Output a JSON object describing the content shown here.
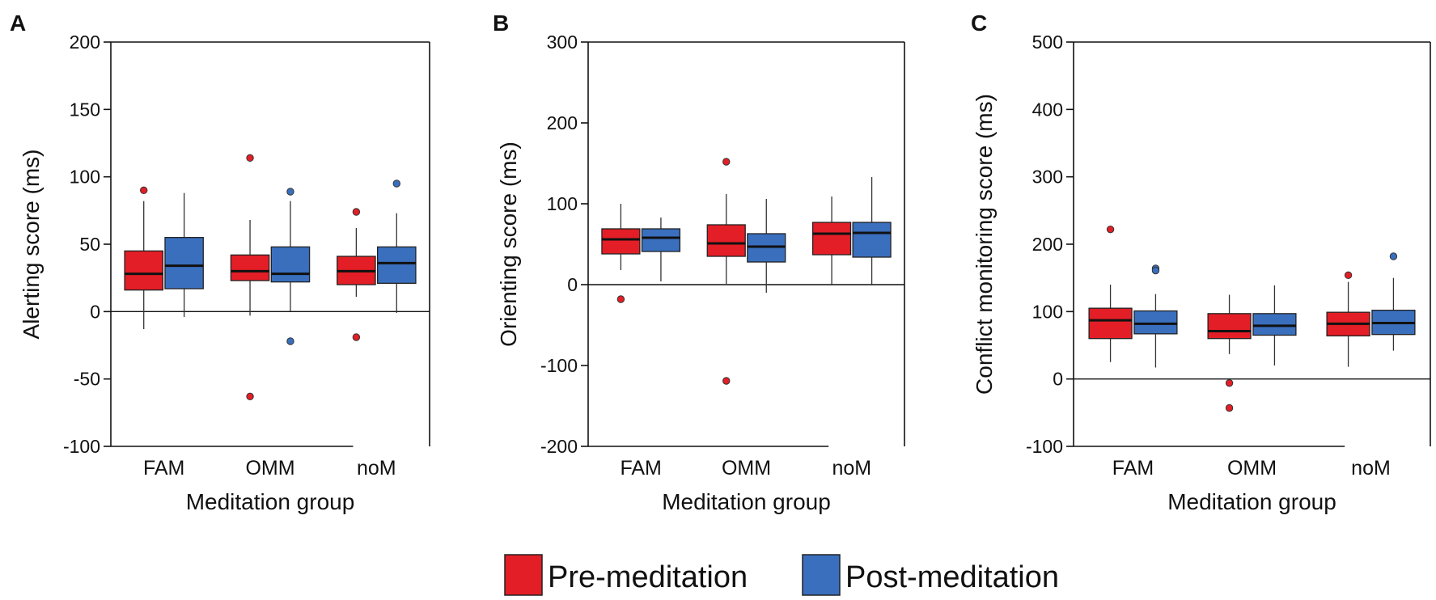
{
  "chart_data": [
    {
      "panel": "A",
      "type": "boxplot",
      "xlabel": "Meditation group",
      "ylabel": "Alerting score (ms)",
      "ylim": [
        -100,
        200
      ],
      "yticks": [
        200,
        150,
        100,
        50,
        0,
        -50,
        -100
      ],
      "ytick_labels": [
        "200",
        "150",
        "100",
        "50",
        "0",
        "-50",
        "-100"
      ],
      "categories": [
        "FAM",
        "OMM",
        "noM"
      ],
      "series": [
        {
          "name": "Pre-meditation",
          "boxes": [
            {
              "whisker_low": -13,
              "q1": 16,
              "median": 28,
              "q3": 45,
              "whisker_high": 82,
              "outliers": [
                90
              ]
            },
            {
              "whisker_low": -3,
              "q1": 23,
              "median": 30,
              "q3": 42,
              "whisker_high": 68,
              "outliers": [
                114,
                -63
              ]
            },
            {
              "whisker_low": 11,
              "q1": 20,
              "median": 30,
              "q3": 41,
              "whisker_high": 62,
              "outliers": [
                74,
                -19
              ]
            }
          ]
        },
        {
          "name": "Post-meditation",
          "boxes": [
            {
              "whisker_low": -4,
              "q1": 17,
              "median": 34,
              "q3": 55,
              "whisker_high": 88,
              "outliers": []
            },
            {
              "whisker_low": 0,
              "q1": 22,
              "median": 28,
              "q3": 48,
              "whisker_high": 82,
              "outliers": [
                89,
                -22
              ]
            },
            {
              "whisker_low": -1,
              "q1": 21,
              "median": 36,
              "q3": 48,
              "whisker_high": 73,
              "outliers": [
                95
              ]
            }
          ]
        }
      ]
    },
    {
      "panel": "B",
      "type": "boxplot",
      "xlabel": "Meditation group",
      "ylabel": "Orienting score (ms)",
      "ylim": [
        -200,
        300
      ],
      "yticks": [
        300,
        200,
        100,
        0,
        -100,
        -200
      ],
      "ytick_labels": [
        "300",
        "200",
        "100",
        "0",
        "-100",
        "-200"
      ],
      "categories": [
        "FAM",
        "OMM",
        "noM"
      ],
      "series": [
        {
          "name": "Pre-meditation",
          "boxes": [
            {
              "whisker_low": 18,
              "q1": 38,
              "median": 56,
              "q3": 69,
              "whisker_high": 100,
              "outliers": [
                -18
              ]
            },
            {
              "whisker_low": 1,
              "q1": 35,
              "median": 51,
              "q3": 74,
              "whisker_high": 112,
              "outliers": [
                152,
                -119
              ]
            },
            {
              "whisker_low": -1,
              "q1": 37,
              "median": 63,
              "q3": 77,
              "whisker_high": 109,
              "outliers": []
            }
          ]
        },
        {
          "name": "Post-meditation",
          "boxes": [
            {
              "whisker_low": 4,
              "q1": 41,
              "median": 58,
              "q3": 69,
              "whisker_high": 83,
              "outliers": []
            },
            {
              "whisker_low": -10,
              "q1": 28,
              "median": 47,
              "q3": 63,
              "whisker_high": 106,
              "outliers": []
            },
            {
              "whisker_low": -1,
              "q1": 34,
              "median": 64,
              "q3": 77,
              "whisker_high": 133,
              "outliers": []
            }
          ]
        }
      ]
    },
    {
      "panel": "C",
      "type": "boxplot",
      "xlabel": "Meditation group",
      "ylabel": "Conflict monitoring score (ms)",
      "ylim": [
        -100,
        500
      ],
      "yticks": [
        500,
        400,
        300,
        200,
        100,
        0,
        -100
      ],
      "ytick_labels": [
        "500",
        "400",
        "300",
        "200",
        "100",
        "0",
        "-100"
      ],
      "categories": [
        "FAM",
        "OMM",
        "noM"
      ],
      "series": [
        {
          "name": "Pre-meditation",
          "boxes": [
            {
              "whisker_low": 25,
              "q1": 60,
              "median": 87,
              "q3": 105,
              "whisker_high": 140,
              "outliers": [
                222
              ]
            },
            {
              "whisker_low": 37,
              "q1": 60,
              "median": 71,
              "q3": 97,
              "whisker_high": 125,
              "outliers": [
                -6,
                -43
              ]
            },
            {
              "whisker_low": 18,
              "q1": 64,
              "median": 82,
              "q3": 99,
              "whisker_high": 144,
              "outliers": [
                154
              ]
            }
          ]
        },
        {
          "name": "Post-meditation",
          "boxes": [
            {
              "whisker_low": 17,
              "q1": 67,
              "median": 82,
              "q3": 101,
              "whisker_high": 126,
              "outliers": [
                164,
                161
              ]
            },
            {
              "whisker_low": 20,
              "q1": 65,
              "median": 79,
              "q3": 97,
              "whisker_high": 139,
              "outliers": []
            },
            {
              "whisker_low": 42,
              "q1": 66,
              "median": 83,
              "q3": 102,
              "whisker_high": 150,
              "outliers": [
                182
              ]
            }
          ]
        }
      ]
    }
  ],
  "legend": {
    "position": "bottom-center",
    "items": [
      {
        "label": "Pre-meditation",
        "color": "#e31e26"
      },
      {
        "label": "Post-meditation",
        "color": "#3a6fbe"
      }
    ]
  },
  "colors": {
    "pre": "#e31e26",
    "post": "#3a6fbe",
    "axis": "#111111"
  }
}
